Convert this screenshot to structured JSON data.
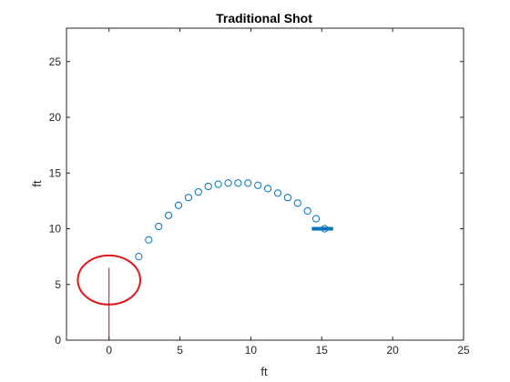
{
  "chart_data": {
    "type": "scatter",
    "title": "Traditional Shot",
    "xlabel": "ft",
    "ylabel": "ft",
    "xlim": [
      -3,
      25
    ],
    "ylim": [
      0,
      28
    ],
    "xticks": [
      0,
      5,
      10,
      15,
      20,
      25
    ],
    "yticks": [
      0,
      5,
      10,
      15,
      20,
      25
    ],
    "xtick_labels": [
      "0",
      "5",
      "10",
      "15",
      "20",
      "25"
    ],
    "ytick_labels": [
      "0",
      "5",
      "10",
      "15",
      "20",
      "25"
    ],
    "grid": false,
    "series": [
      {
        "marker": "circle-open",
        "color": "#0072BD",
        "x": [
          2.1,
          2.8,
          3.5,
          4.2,
          4.9,
          5.6,
          6.3,
          7.0,
          7.7,
          8.4,
          9.1,
          9.8,
          10.5,
          11.2,
          11.9,
          12.6,
          13.3,
          14.0,
          14.6,
          15.2
        ],
        "y": [
          7.5,
          9.0,
          10.2,
          11.2,
          12.1,
          12.8,
          13.3,
          13.8,
          14.0,
          14.1,
          14.1,
          14.1,
          13.9,
          13.6,
          13.2,
          12.8,
          12.3,
          11.6,
          10.9,
          10.0
        ]
      }
    ],
    "shapes": [
      {
        "kind": "ellipse",
        "cx": 0,
        "cy": 5.4,
        "rx": 2.2,
        "ry": 2.2,
        "color": "#E0161B"
      },
      {
        "kind": "line",
        "x1": 0,
        "y1": 0,
        "x2": 0,
        "y2": 6.5,
        "color": "#C0141B"
      },
      {
        "kind": "hoop",
        "x1": 14.3,
        "x2": 15.8,
        "y": 10,
        "color": "#0072BD"
      }
    ]
  }
}
